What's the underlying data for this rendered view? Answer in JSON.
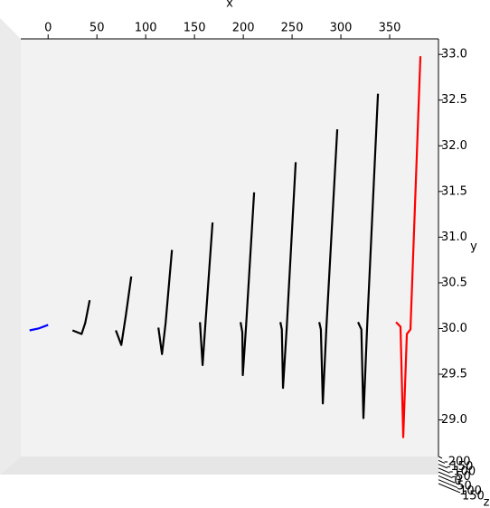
{
  "chart_data": {
    "type": "line3d",
    "xlabel": "x",
    "ylabel": "y",
    "zlabel": "z",
    "xlim": [
      -28,
      400
    ],
    "ylim": [
      28.6,
      33.17
    ],
    "xticks": [
      0,
      50,
      100,
      150,
      200,
      250,
      300,
      350
    ],
    "yticks": [
      {
        "value": 29.0,
        "label": "29.0"
      },
      {
        "value": 29.5,
        "label": "29.5"
      },
      {
        "value": 30.0,
        "label": "30.0"
      },
      {
        "value": 30.5,
        "label": "30.5"
      },
      {
        "value": 31.0,
        "label": "31.0"
      },
      {
        "value": 31.5,
        "label": "31.5"
      },
      {
        "value": 32.0,
        "label": "32.0"
      },
      {
        "value": 32.5,
        "label": "32.5"
      },
      {
        "value": 33.0,
        "label": "33.0"
      }
    ],
    "zticks": [
      -200,
      -150,
      -100,
      -50,
      0,
      50,
      100,
      150
    ],
    "series": [
      {
        "color": "#0000ff",
        "x": [
          -19,
          -10,
          0
        ],
        "values": [
          29.98,
          30.0,
          30.04
        ]
      },
      {
        "color": "#000000",
        "x": [
          25,
          34.3,
          38,
          42.6
        ],
        "values": [
          29.98,
          29.94,
          30.06,
          30.31
        ]
      },
      {
        "color": "#000000",
        "x": [
          69.4,
          75,
          79.6,
          85.2
        ],
        "values": [
          29.98,
          29.82,
          30.14,
          30.57
        ]
      },
      {
        "color": "#000000",
        "x": [
          113,
          116.7,
          120.4,
          126.9
        ],
        "values": [
          30.01,
          29.72,
          30.06,
          30.86
        ]
      },
      {
        "color": "#000000",
        "x": [
          155.6,
          158.3,
          161.1,
          168.5
        ],
        "values": [
          30.07,
          29.6,
          30.04,
          31.16
        ]
      },
      {
        "color": "#000000",
        "x": [
          197.2,
          199,
          199.5,
          202.8,
          211.1
        ],
        "values": [
          30.07,
          29.96,
          29.49,
          30.02,
          31.49
        ]
      },
      {
        "color": "#000000",
        "x": [
          238,
          239.5,
          240.7,
          244.4,
          253.7
        ],
        "values": [
          30.07,
          29.99,
          29.35,
          29.99,
          31.82
        ]
      },
      {
        "color": "#000000",
        "x": [
          277.8,
          279.5,
          281.5,
          285.2,
          296.3
        ],
        "values": [
          30.07,
          29.99,
          29.18,
          30.02,
          32.18
        ]
      },
      {
        "color": "#000000",
        "x": [
          317.6,
          321,
          323.1,
          326.9,
          338
        ],
        "values": [
          30.07,
          29.99,
          29.02,
          30.02,
          32.57
        ]
      },
      {
        "color": "#ff0000",
        "x": [
          356.5,
          361.1,
          363.9,
          367.6,
          371.3,
          381.5
        ],
        "values": [
          30.07,
          30.02,
          28.81,
          29.94,
          29.99,
          32.98
        ]
      }
    ]
  }
}
